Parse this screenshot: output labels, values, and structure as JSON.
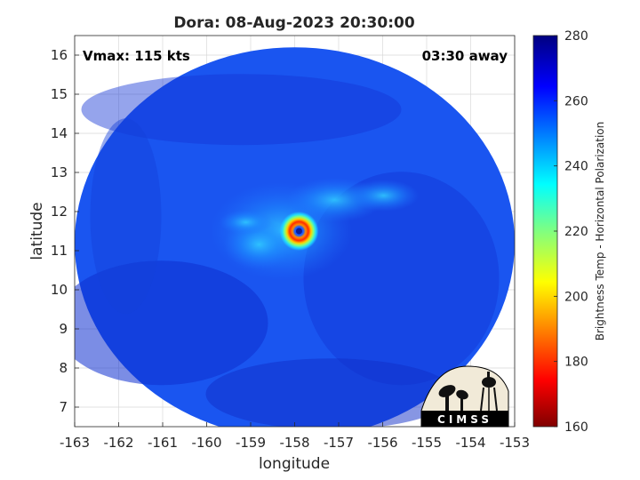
{
  "chart_data": {
    "type": "heatmap",
    "title": "Dora: 08-Aug-2023 20:30:00",
    "xlabel": "longitude",
    "ylabel": "latitude",
    "xlim": [
      -163,
      -153
    ],
    "ylim": [
      6.5,
      16.5
    ],
    "x_ticks": [
      -163,
      -162,
      -161,
      -160,
      -159,
      -158,
      -157,
      -156,
      -155,
      -154,
      -153
    ],
    "y_ticks": [
      7,
      8,
      9,
      10,
      11,
      12,
      13,
      14,
      15,
      16
    ],
    "grid": true,
    "annotations": {
      "vmax": "Vmax: 115 kts",
      "time_offset": "03:30 away"
    },
    "storm_center": {
      "lon": -157.9,
      "lat": 11.5
    },
    "swath": {
      "center_lon": -158.0,
      "center_lat": 11.2,
      "radius_deg": 5.0
    },
    "colorbar": {
      "label": "Brightness Temp - Horizontal Polarization",
      "range": [
        160,
        280
      ],
      "ticks": [
        160,
        180,
        200,
        220,
        240,
        260,
        280
      ],
      "colormap": "jet"
    }
  },
  "logo": {
    "text": "CIMSS"
  },
  "colors": {
    "background": "#ffffff",
    "grid": "#d8d8d8",
    "text": "#262626",
    "axis": "#262626"
  }
}
